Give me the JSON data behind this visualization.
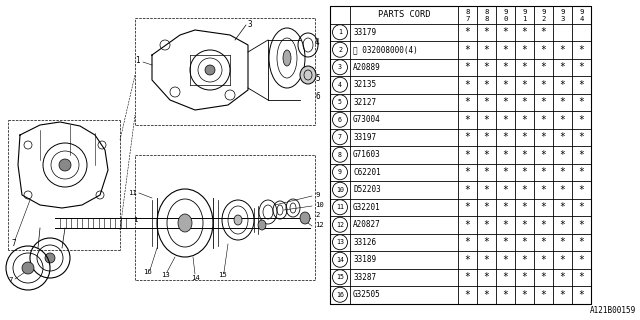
{
  "diagram_id": "A121B00159",
  "bg_color": "#ffffff",
  "col_header": "PARTS CORD",
  "year_cols": [
    "8\n7",
    "8\n8",
    "9\n0",
    "9\n1",
    "9\n2",
    "9\n3",
    "9\n4"
  ],
  "parts": [
    {
      "num": "1",
      "code": "33179",
      "marks": [
        0,
        1,
        1,
        1,
        1,
        1,
        0,
        0
      ]
    },
    {
      "num": "2",
      "code": "Ⓦ 032008000(4)",
      "marks": [
        0,
        1,
        1,
        1,
        1,
        1,
        1,
        1
      ]
    },
    {
      "num": "3",
      "code": "A20889",
      "marks": [
        0,
        1,
        1,
        1,
        1,
        1,
        1,
        1
      ]
    },
    {
      "num": "4",
      "code": "32135",
      "marks": [
        0,
        1,
        1,
        1,
        1,
        1,
        1,
        1
      ]
    },
    {
      "num": "5",
      "code": "32127",
      "marks": [
        0,
        1,
        1,
        1,
        1,
        1,
        1,
        1
      ]
    },
    {
      "num": "6",
      "code": "G73004",
      "marks": [
        0,
        1,
        1,
        1,
        1,
        1,
        1,
        1
      ]
    },
    {
      "num": "7",
      "code": "33197",
      "marks": [
        0,
        1,
        1,
        1,
        1,
        1,
        1,
        1
      ]
    },
    {
      "num": "8",
      "code": "G71603",
      "marks": [
        0,
        1,
        1,
        1,
        1,
        1,
        1,
        1
      ]
    },
    {
      "num": "9",
      "code": "C62201",
      "marks": [
        0,
        1,
        1,
        1,
        1,
        1,
        1,
        1
      ]
    },
    {
      "num": "10",
      "code": "D52203",
      "marks": [
        0,
        1,
        1,
        1,
        1,
        1,
        1,
        1
      ]
    },
    {
      "num": "11",
      "code": "G32201",
      "marks": [
        0,
        1,
        1,
        1,
        1,
        1,
        1,
        1
      ]
    },
    {
      "num": "12",
      "code": "A20827",
      "marks": [
        0,
        1,
        1,
        1,
        1,
        1,
        1,
        1
      ]
    },
    {
      "num": "13",
      "code": "33126",
      "marks": [
        0,
        1,
        1,
        1,
        1,
        1,
        1,
        1
      ]
    },
    {
      "num": "14",
      "code": "33189",
      "marks": [
        0,
        1,
        1,
        1,
        1,
        1,
        1,
        1
      ]
    },
    {
      "num": "15",
      "code": "33287",
      "marks": [
        0,
        1,
        1,
        1,
        1,
        1,
        1,
        1
      ]
    },
    {
      "num": "16",
      "code": "G32505",
      "marks": [
        0,
        1,
        1,
        1,
        1,
        1,
        1,
        1
      ]
    }
  ],
  "line_color": "#000000",
  "text_color": "#000000"
}
